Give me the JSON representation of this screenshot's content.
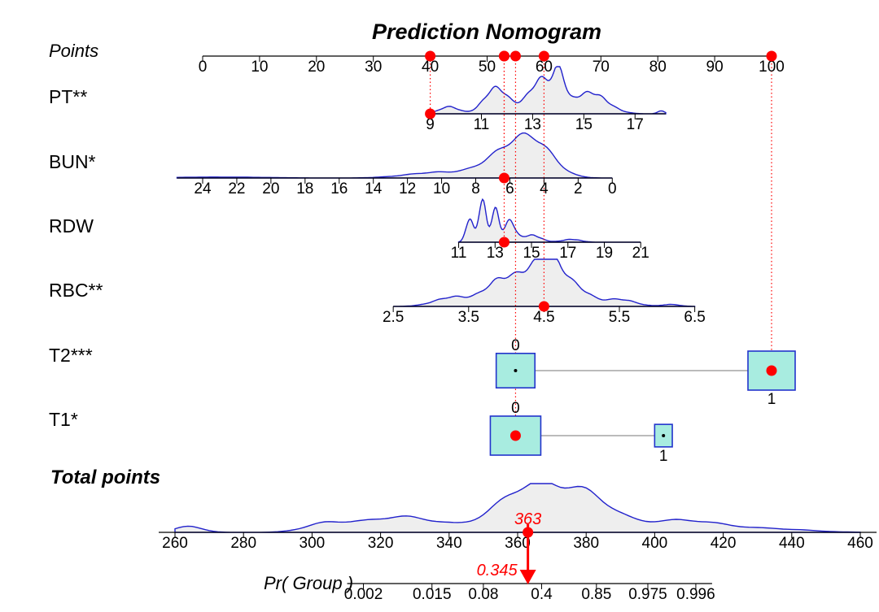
{
  "chart_data": {
    "type": "nomogram",
    "title": "Prediction Nomogram",
    "points_axis": {
      "label": "Points",
      "ticks": [
        "0",
        "10",
        "20",
        "30",
        "40",
        "50",
        "60",
        "70",
        "80",
        "90",
        "100"
      ],
      "range": [
        0,
        100
      ]
    },
    "continuous_variables": [
      {
        "name": "PT**",
        "ticks": [
          "9",
          "11",
          "13",
          "15",
          "17"
        ],
        "tick_values": [
          9,
          11,
          13,
          15,
          17
        ],
        "axis_range": [
          9,
          18.2
        ],
        "points_for_value": [
          [
            9,
            40
          ],
          [
            17,
            76
          ]
        ],
        "selected_value": 9,
        "selected_points": 40
      },
      {
        "name": "BUN*",
        "ticks": [
          "24",
          "22",
          "20",
          "18",
          "16",
          "14",
          "12",
          "10",
          "8",
          "6",
          "4",
          "2",
          "0"
        ],
        "tick_values": [
          24,
          22,
          20,
          18,
          16,
          14,
          12,
          10,
          8,
          6,
          4,
          2,
          0
        ],
        "axis_range": [
          25.5,
          0
        ],
        "points_for_value": [
          [
            24,
            0
          ],
          [
            0,
            72
          ]
        ],
        "selected_value": 6,
        "selected_points": 53
      },
      {
        "name": "RDW",
        "ticks": [
          "11",
          "13",
          "15",
          "17",
          "19",
          "21"
        ],
        "tick_values": [
          11,
          13,
          15,
          17,
          19,
          21
        ],
        "axis_range": [
          11,
          21
        ],
        "points_for_value": [
          [
            11,
            45
          ],
          [
            21,
            77
          ]
        ],
        "selected_value": 13.6,
        "selected_points": 53
      },
      {
        "name": "RBC**",
        "ticks": [
          "2.5",
          "3.5",
          "4.5",
          "5.5",
          "6.5"
        ],
        "tick_values": [
          2.5,
          3.5,
          4.5,
          5.5,
          6.5
        ],
        "axis_range": [
          2.5,
          6.5
        ],
        "points_for_value": [
          [
            2.5,
            33.5
          ],
          [
            6.5,
            86.5
          ]
        ],
        "selected_value": 4.5,
        "selected_points": 60
      }
    ],
    "categorical_variables": [
      {
        "name": "T2***",
        "levels": [
          {
            "label": "0",
            "points": 55,
            "box_relative_size": 0.82
          },
          {
            "label": "1",
            "points": 100,
            "box_relative_size": 1.0
          }
        ],
        "selected_level": "1",
        "selected_points": 100
      },
      {
        "name": "T1*",
        "levels": [
          {
            "label": "0",
            "points": 55,
            "box_relative_size": 1.0
          },
          {
            "label": "1",
            "points": 81,
            "box_relative_size": 0.35
          }
        ],
        "selected_level": "0",
        "selected_points": 55
      }
    ],
    "total_points_axis": {
      "label": "Total points",
      "ticks": [
        "260",
        "280",
        "300",
        "320",
        "340",
        "360",
        "380",
        "400",
        "420",
        "440",
        "460"
      ],
      "range": [
        260,
        460
      ],
      "selected_value": 363,
      "selected_label": "363"
    },
    "probability_axis": {
      "label": "Pr( Group )",
      "ticks": [
        "0.002",
        "0.015",
        "0.08",
        "0.4",
        "0.85",
        "0.975",
        "0.996"
      ],
      "tick_total_points": [
        315,
        335,
        350,
        367,
        383,
        398,
        412
      ],
      "selected_value": 0.345,
      "selected_label": "0.345"
    },
    "colors": {
      "density_line": "#2222cc",
      "density_fill": "#eeeeee",
      "highlight": "#ff0000",
      "box_fill": "#a8ece0",
      "box_stroke": "#2233cc"
    }
  }
}
